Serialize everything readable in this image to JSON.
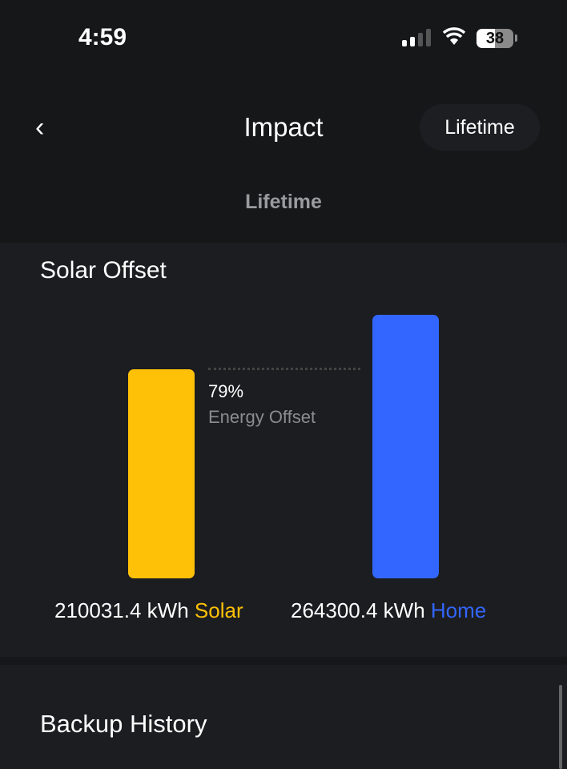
{
  "status": {
    "time": "4:59",
    "battery": "38",
    "signal_bars": 2,
    "signal_total": 4
  },
  "header": {
    "title": "Impact",
    "period_button": "Lifetime",
    "subtitle": "Lifetime",
    "back_icon": "chevron-left-icon"
  },
  "solar_offset": {
    "title": "Solar Offset",
    "percent": "79%",
    "percent_label": "Energy Offset",
    "solar": {
      "value": "210031.4 kWh",
      "label": "Solar",
      "color": "#FFC107"
    },
    "home": {
      "value": "264300.4 kWh",
      "label": "Home",
      "color": "#3366FF"
    }
  },
  "chart_data": {
    "type": "bar",
    "categories": [
      "Solar",
      "Home"
    ],
    "values": [
      210031.4,
      264300.4
    ],
    "unit": "kWh",
    "colors": [
      "#FFC107",
      "#3366FF"
    ]
  },
  "backup_history": {
    "title": "Backup History"
  }
}
